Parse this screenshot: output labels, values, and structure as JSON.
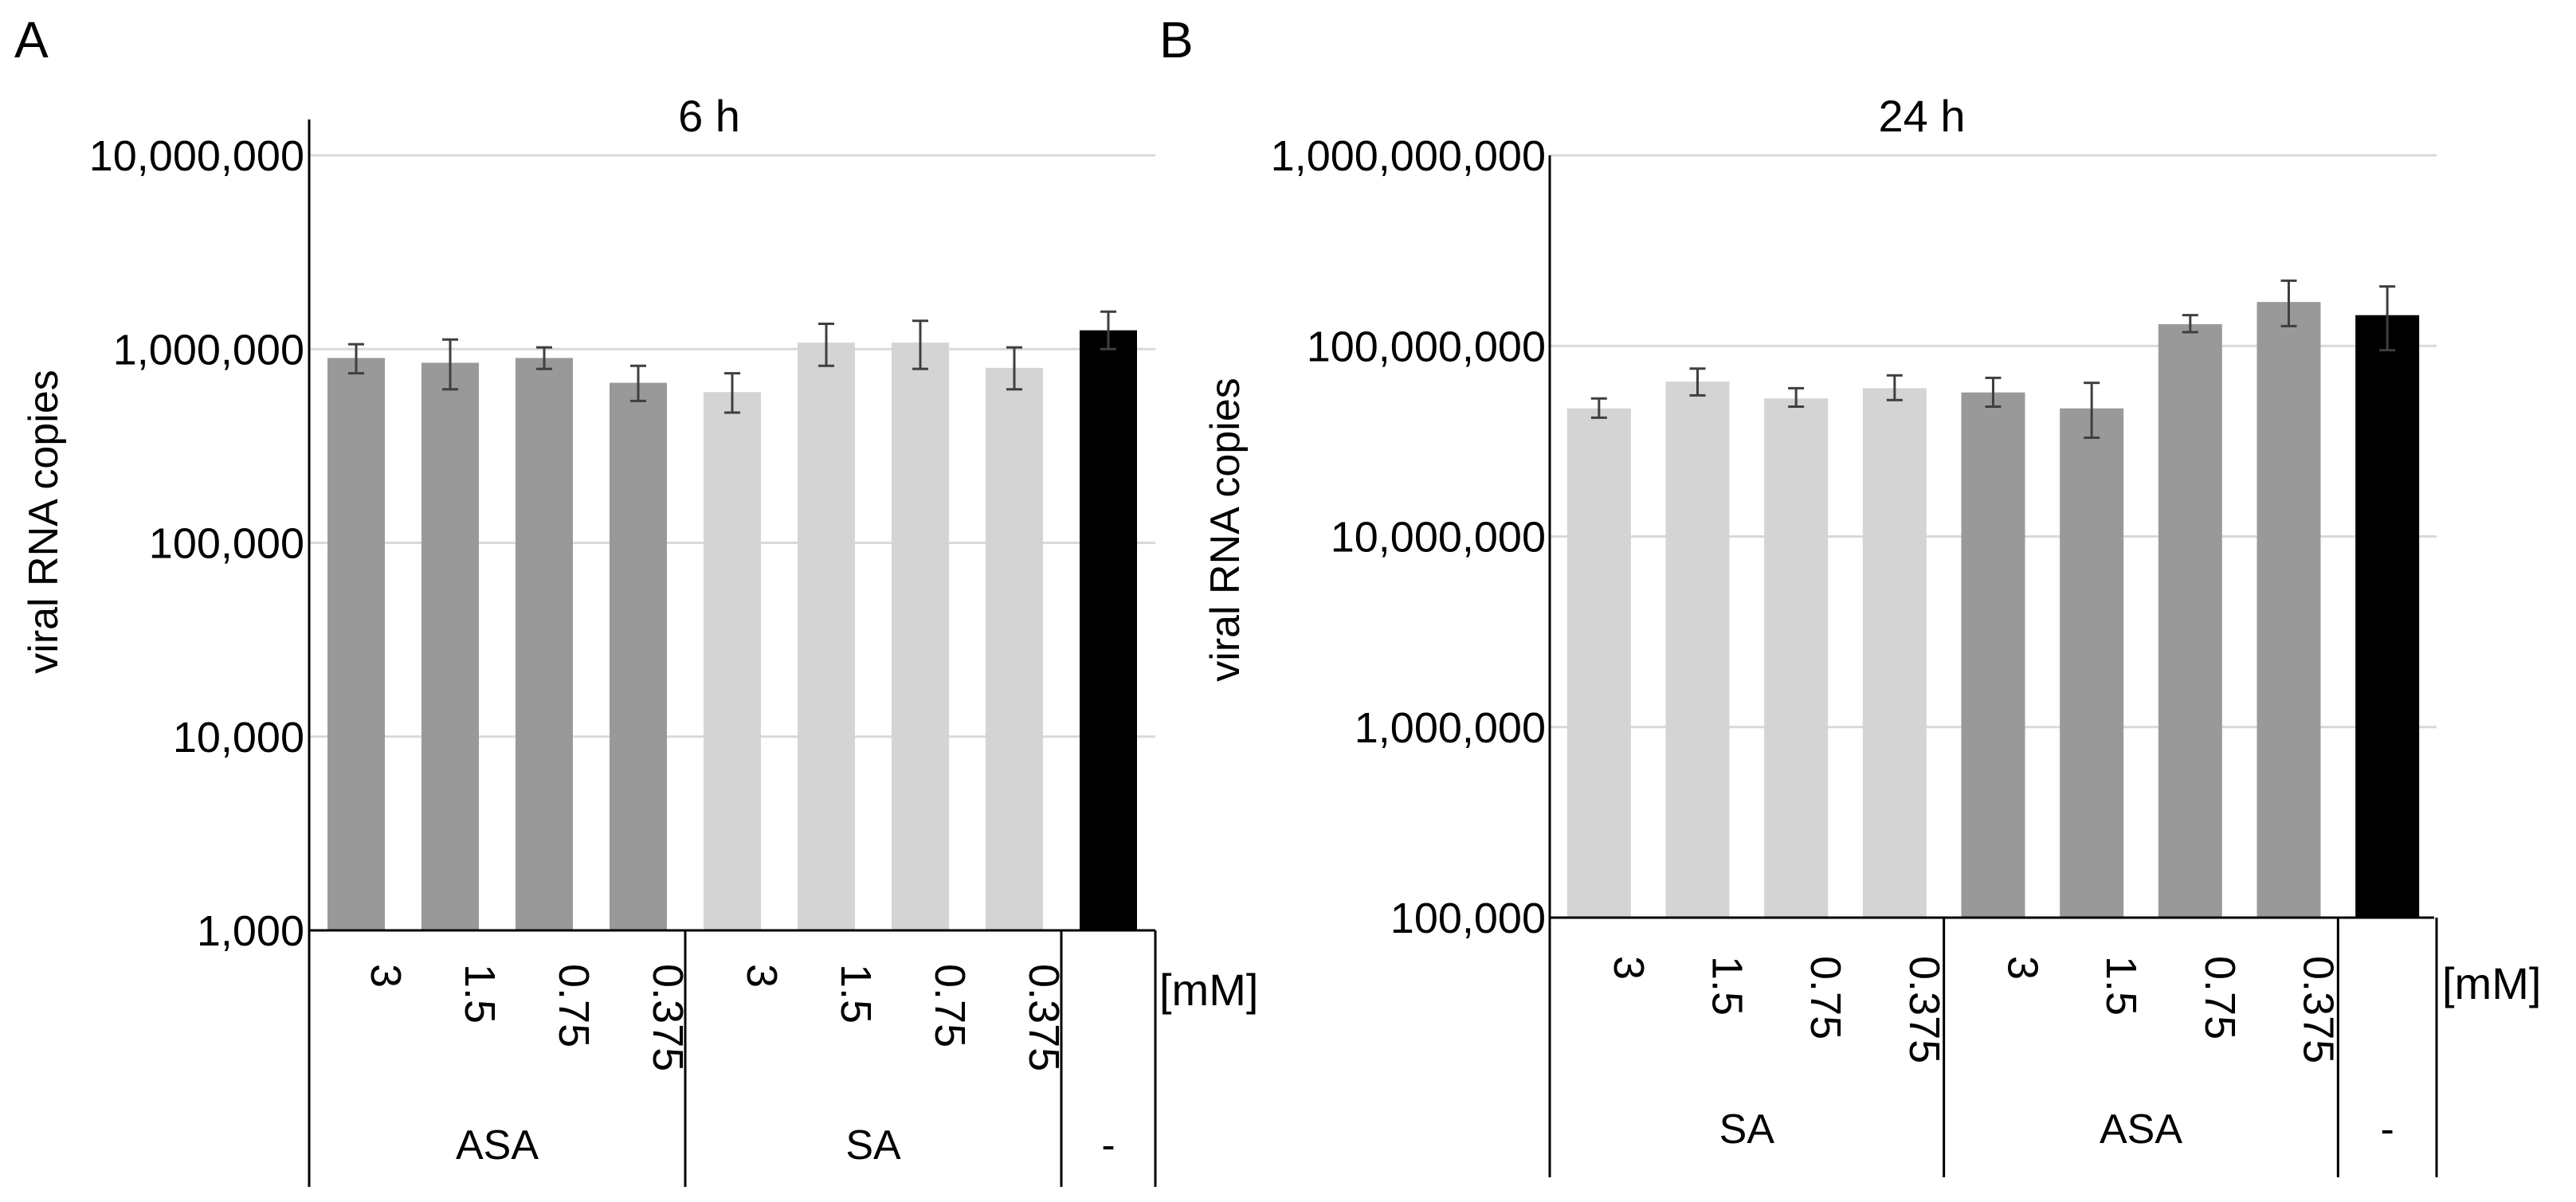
{
  "colors": {
    "asa": "#999999",
    "sa": "#d4d4d4",
    "control": "#000000",
    "gridline": "#d9d9d9",
    "axis": "#000000",
    "errorbar": "#3f3f3f"
  },
  "chart_data": [
    {
      "panel_label": "A",
      "type": "bar",
      "title": "6 h",
      "ylabel": "viral RNA copies",
      "yscale": "log",
      "ylim": [
        1000,
        10000000
      ],
      "yticks": [
        "1,000",
        "10,000",
        "100,000",
        "1,000,000",
        "10,000,000"
      ],
      "unit_label": "[mM]",
      "groups": [
        {
          "name": "ASA",
          "color": "asa",
          "categories": [
            "3",
            "1.5",
            "0.75",
            "0.375"
          ],
          "values": [
            900000,
            850000,
            900000,
            670000
          ],
          "err_low": [
            750000,
            620000,
            790000,
            540000
          ],
          "err_high": [
            1060000,
            1120000,
            1020000,
            820000
          ]
        },
        {
          "name": "SA",
          "color": "sa",
          "categories": [
            "3",
            "1.5",
            "0.75",
            "0.375"
          ],
          "values": [
            600000,
            1080000,
            1080000,
            800000
          ],
          "err_low": [
            470000,
            820000,
            790000,
            620000
          ],
          "err_high": [
            750000,
            1350000,
            1400000,
            1020000
          ]
        },
        {
          "name": "-",
          "color": "control",
          "categories": [
            ""
          ],
          "values": [
            1250000
          ],
          "err_low": [
            1000000
          ],
          "err_high": [
            1560000
          ]
        }
      ]
    },
    {
      "panel_label": "B",
      "type": "bar",
      "title": "24 h",
      "ylabel": "viral RNA copies",
      "yscale": "log",
      "ylim": [
        100000,
        1000000000
      ],
      "yticks": [
        "100,000",
        "1,000,000",
        "10,000,000",
        "100,000,000",
        "1,000,000,000"
      ],
      "unit_label": "[mM]",
      "groups": [
        {
          "name": "SA",
          "color": "sa",
          "categories": [
            "3",
            "1.5",
            "0.75",
            "0.375"
          ],
          "values": [
            47000000,
            65000000,
            53000000,
            60000000
          ],
          "err_low": [
            42000000,
            55000000,
            48000000,
            52000000
          ],
          "err_high": [
            53000000,
            76000000,
            60000000,
            70000000
          ]
        },
        {
          "name": "ASA",
          "color": "asa",
          "categories": [
            "3",
            "1.5",
            "0.75",
            "0.375"
          ],
          "values": [
            57000000,
            47000000,
            130000000,
            170000000
          ],
          "err_low": [
            48000000,
            33000000,
            118000000,
            127000000
          ],
          "err_high": [
            68000000,
            64000000,
            145000000,
            220000000
          ]
        },
        {
          "name": "-",
          "color": "control",
          "categories": [
            ""
          ],
          "values": [
            145000000
          ],
          "err_low": [
            95000000
          ],
          "err_high": [
            205000000
          ]
        }
      ]
    }
  ]
}
